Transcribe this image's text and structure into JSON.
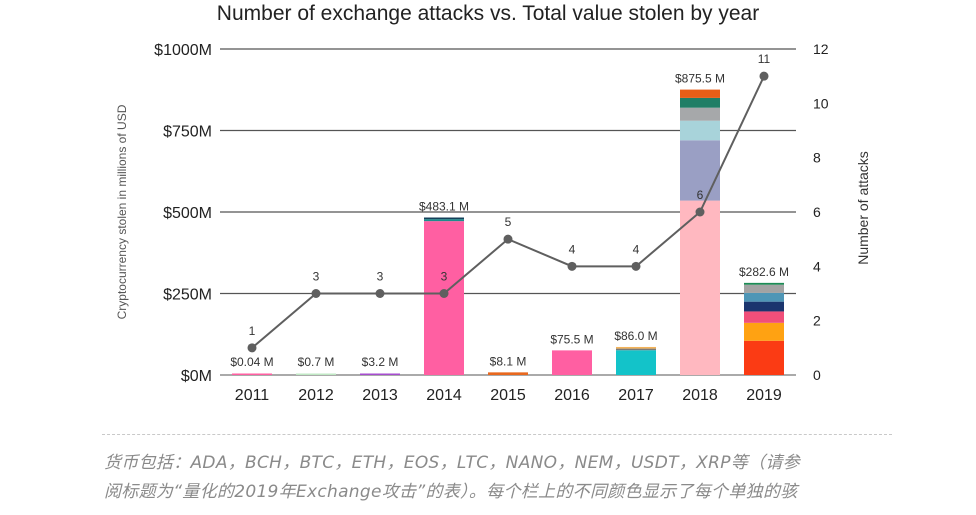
{
  "chart_data": {
    "type": "bar",
    "title": "Number of exchange attacks vs. Total value stolen by year",
    "ylabel": "Cryptocurrency stolen in millions of USD",
    "y2label": "Number of attacks",
    "ylim": [
      0,
      1000
    ],
    "y2lim": [
      0,
      12
    ],
    "yticks": [
      "$0M",
      "$250M",
      "$500M",
      "$750M",
      "$1000M"
    ],
    "yticks_values": [
      0,
      250,
      500,
      750,
      1000
    ],
    "y2ticks": [
      0,
      2,
      4,
      6,
      8,
      10,
      12
    ],
    "grid": true,
    "categories": [
      "2011",
      "2012",
      "2013",
      "2014",
      "2015",
      "2016",
      "2017",
      "2018",
      "2019"
    ],
    "totals": [
      0.04,
      0.7,
      3.2,
      483.1,
      8.1,
      75.5,
      86.0,
      875.5,
      282.6
    ],
    "total_labels": [
      "$0.04 M",
      "$0.7 M",
      "$3.2 M",
      "$483.1 M",
      "$8.1 M",
      "$75.5 M",
      "$86.0 M",
      "$875.5 M",
      "$282.6 M"
    ],
    "stacks": [
      [
        {
          "value": 0.04,
          "color": "#ff5fa2"
        }
      ],
      [
        {
          "value": 0.7,
          "color": "#c0e8c4"
        }
      ],
      [
        {
          "value": 3.2,
          "color": "#a64dcf"
        }
      ],
      [
        {
          "value": 472,
          "color": "#ff5fa2"
        },
        {
          "value": 6,
          "color": "#1e8d8d"
        },
        {
          "value": 5.1,
          "color": "#15405a"
        }
      ],
      [
        {
          "value": 8.1,
          "color": "#e8681f"
        }
      ],
      [
        {
          "value": 75.5,
          "color": "#ff5fa2"
        }
      ],
      [
        {
          "value": 76,
          "color": "#13c3c9"
        },
        {
          "value": 5,
          "color": "#7a7a7a"
        },
        {
          "value": 5,
          "color": "#f3b35a"
        }
      ],
      [
        {
          "value": 535,
          "color": "#ffb8c0"
        },
        {
          "value": 185,
          "color": "#9a9fc4"
        },
        {
          "value": 60,
          "color": "#a8d3da"
        },
        {
          "value": 40,
          "color": "#a6a8aa"
        },
        {
          "value": 30,
          "color": "#207e66"
        },
        {
          "value": 25.5,
          "color": "#e85e17"
        }
      ],
      [
        {
          "value": 105,
          "color": "#fb3b14"
        },
        {
          "value": 55,
          "color": "#ffa212"
        },
        {
          "value": 35,
          "color": "#f04f7a"
        },
        {
          "value": 30,
          "color": "#1b356e"
        },
        {
          "value": 27,
          "color": "#4f96b6"
        },
        {
          "value": 25,
          "color": "#a3a3a3"
        },
        {
          "value": 5.6,
          "color": "#1c8b55"
        }
      ]
    ],
    "attacks": [
      1,
      3,
      3,
      3,
      5,
      4,
      4,
      6,
      11
    ],
    "attack_labels": [
      "1",
      "3",
      "3",
      "3",
      "5",
      "4",
      "4",
      "6",
      "11"
    ],
    "line_color": "#5f5f5f"
  },
  "caption": {
    "line1": "货币包括：ADA，BCH，BTC，ETH，EOS，LTC，NANO，NEM，USDT，XRP等（请参",
    "line2": "阅标题为“量化的2019年Exchange攻击”的表）。每个栏上的不同颜色显示了每个单独的骇"
  }
}
